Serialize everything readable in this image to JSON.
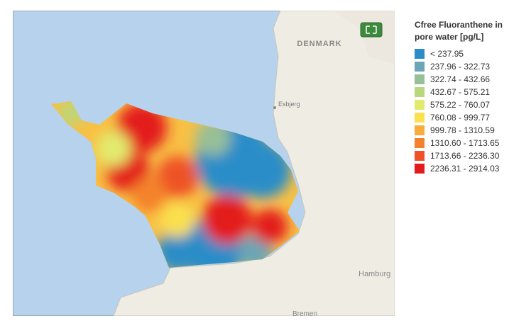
{
  "map": {
    "labels": [
      {
        "text": "DENMARK"
      },
      {
        "text": "Esbjerg"
      },
      {
        "text": "Hamburg"
      },
      {
        "text": "Bremen"
      }
    ]
  },
  "legend": {
    "title": "Cfree Fluoranthene in pore water [pg/L]",
    "items": [
      {
        "label": "< 237.95",
        "color": "#2b8dc8"
      },
      {
        "label": "237.96 - 322.73",
        "color": "#6aa6b5"
      },
      {
        "label": "322.74 - 432.66",
        "color": "#97bf98"
      },
      {
        "label": "432.67 - 575.21",
        "color": "#b9d77c"
      },
      {
        "label": "575.22 - 760.07",
        "color": "#e2ea6e"
      },
      {
        "label": "760.08 - 999.77",
        "color": "#fae04d"
      },
      {
        "label": "999.78 - 1310.59",
        "color": "#f9ab3c"
      },
      {
        "label": "1310.60 - 1713.65",
        "color": "#f4822c"
      },
      {
        "label": "1713.66 - 2236.30",
        "color": "#ee5226"
      },
      {
        "label": "2236.31 - 2914.03",
        "color": "#e31b1c"
      }
    ]
  }
}
